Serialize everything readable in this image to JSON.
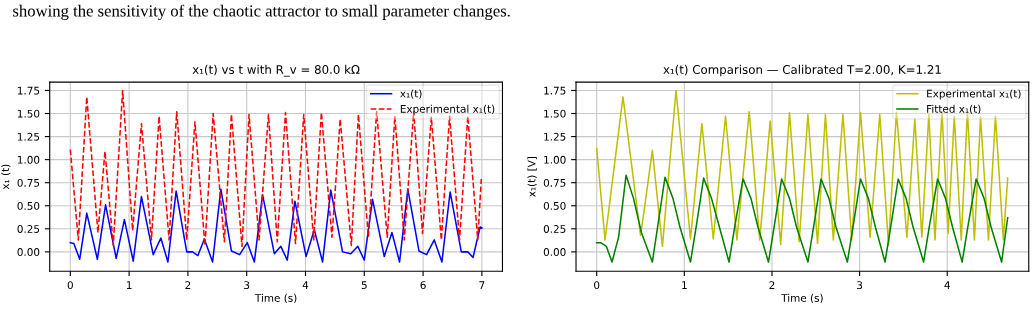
{
  "chart_data": [
    {
      "type": "line",
      "title": "x₁(t) vs t with R_v = 80.0 kΩ",
      "xlabel": "Time (s)",
      "ylabel": "x₁ (t)",
      "annotations": [
        "showing the sensitivity of the chaotic attractor to small parameter changes."
      ],
      "xlim": [
        -0.35,
        7.35
      ],
      "ylim": [
        -0.21,
        1.84
      ],
      "xticks": [
        0,
        1,
        2,
        3,
        4,
        5,
        6,
        7
      ],
      "yticks": [
        {
          "value": 0,
          "label": "0.00"
        },
        {
          "value": 0.25,
          "label": "0.25"
        },
        {
          "value": 0.5,
          "label": "0.50"
        },
        {
          "value": 0.75,
          "label": "0.75"
        },
        {
          "value": 1.0,
          "label": "1.00"
        },
        {
          "value": 1.25,
          "label": "1.25"
        },
        {
          "value": 1.5,
          "label": "1.50"
        },
        {
          "value": 1.75,
          "label": "1.75"
        }
      ],
      "grid": true,
      "legend": "top right",
      "series": [
        {
          "name": "x₁(t)",
          "color": "#0000ff",
          "line_style": "solid",
          "x": [
            0,
            0.06,
            0.16,
            0.28,
            0.46,
            0.6,
            0.78,
            0.92,
            1.07,
            1.21,
            1.41,
            1.54,
            1.66,
            1.8,
            1.98,
            2.08,
            2.17,
            2.28,
            2.42,
            2.56,
            2.74,
            2.88,
            3.01,
            3.13,
            3.27,
            3.47,
            3.58,
            3.69,
            3.82,
            4.01,
            4.15,
            4.29,
            4.43,
            4.63,
            4.77,
            4.89,
            5.0,
            5.14,
            5.34,
            5.47,
            5.6,
            5.74,
            5.93,
            6.06,
            6.19,
            6.32,
            6.46,
            6.65,
            6.76,
            6.85,
            6.97,
            7.0
          ],
          "values": [
            0.1,
            0.09,
            -0.08,
            0.42,
            -0.08,
            0.51,
            -0.07,
            0.35,
            -0.1,
            0.6,
            -0.03,
            0.15,
            -0.11,
            0.66,
            0.0,
            0.0,
            -0.04,
            0.14,
            -0.11,
            0.68,
            0.01,
            -0.03,
            0.1,
            -0.11,
            0.62,
            -0.02,
            0.06,
            -0.09,
            0.55,
            -0.05,
            0.24,
            -0.11,
            0.67,
            0.0,
            -0.02,
            0.06,
            -0.09,
            0.57,
            -0.05,
            0.21,
            -0.11,
            0.68,
            0.01,
            -0.03,
            0.13,
            -0.11,
            0.65,
            0.0,
            0.0,
            -0.06,
            0.27,
            0.26
          ]
        },
        {
          "name": "Experimental x₁(t)",
          "color": "#ff0000",
          "line_style": "dashed",
          "x": [
            0,
            0.136,
            0.28,
            0.47,
            0.59,
            0.73,
            0.89,
            1.06,
            1.21,
            1.38,
            1.51,
            1.68,
            1.81,
            1.98,
            2.12,
            2.29,
            2.43,
            2.62,
            2.74,
            2.92,
            3.04,
            3.21,
            3.37,
            3.52,
            3.66,
            3.83,
            3.97,
            4.14,
            4.27,
            4.45,
            4.59,
            4.78,
            4.9,
            5.07,
            5.21,
            5.39,
            5.52,
            5.68,
            5.84,
            5.99,
            6.14,
            6.31,
            6.45,
            6.62,
            6.76,
            6.93,
            6.99
          ],
          "values": [
            1.11,
            0.13,
            1.68,
            0.21,
            1.09,
            0.07,
            1.75,
            0.23,
            1.39,
            0.13,
            1.47,
            0.13,
            1.52,
            0.13,
            1.41,
            0.07,
            1.5,
            0.11,
            1.49,
            0.06,
            1.49,
            0.13,
            1.49,
            0.11,
            1.51,
            0.09,
            1.49,
            0.13,
            1.51,
            0.16,
            1.44,
            0.07,
            1.49,
            0.16,
            1.52,
            0.16,
            1.47,
            0.13,
            1.52,
            0.2,
            1.46,
            0.13,
            1.47,
            0.13,
            1.47,
            0.13,
            0.79
          ]
        }
      ]
    },
    {
      "type": "line",
      "title": "x₁(t) Comparison — Calibrated T=2.00, K=1.21",
      "xlabel": "Time (s)",
      "ylabel": "x₁(t) [V]",
      "xlim": [
        -0.236,
        4.93
      ],
      "ylim": [
        -0.21,
        1.84
      ],
      "xticks": [
        0,
        1,
        2,
        3,
        4
      ],
      "yticks": [
        {
          "value": 0,
          "label": "0.00"
        },
        {
          "value": 0.25,
          "label": "0.25"
        },
        {
          "value": 0.5,
          "label": "0.50"
        },
        {
          "value": 0.75,
          "label": "0.75"
        },
        {
          "value": 1.0,
          "label": "1.00"
        },
        {
          "value": 1.25,
          "label": "1.25"
        },
        {
          "value": 1.5,
          "label": "1.50"
        },
        {
          "value": 1.75,
          "label": "1.75"
        }
      ],
      "grid": true,
      "legend": "top right",
      "series": [
        {
          "name": "Experimental x₁(t)",
          "color": "#bfbf00",
          "line_style": "solid",
          "x": [
            0,
            0.095,
            0.3,
            0.5,
            0.54,
            0.635,
            0.75,
            0.905,
            1.07,
            1.2,
            1.33,
            1.47,
            1.6,
            1.74,
            1.86,
            1.98,
            2.1,
            2.2,
            2.31,
            2.41,
            2.52,
            2.61,
            2.7,
            2.81,
            2.91,
            3.01,
            3.12,
            3.23,
            3.33,
            3.42,
            3.54,
            3.63,
            3.71,
            3.79,
            3.86,
            3.94,
            4.01,
            4.08,
            4.16,
            4.23,
            4.31,
            4.38,
            4.47,
            4.55,
            4.64,
            4.69
          ],
          "values": [
            1.12,
            0.13,
            1.68,
            0.18,
            0.44,
            1.1,
            0.06,
            1.75,
            0.14,
            1.39,
            0.14,
            1.47,
            0.13,
            1.52,
            0.13,
            1.42,
            0.08,
            1.51,
            0.11,
            1.49,
            0.09,
            1.49,
            0.13,
            1.49,
            0.13,
            1.51,
            0.16,
            1.49,
            0.07,
            1.51,
            0.16,
            1.44,
            0.16,
            1.49,
            0.13,
            1.52,
            0.2,
            1.47,
            0.13,
            1.52,
            0.13,
            1.46,
            0.13,
            1.47,
            0.13,
            0.8
          ]
        },
        {
          "name": "Fitted x₁(t)",
          "color": "#008000",
          "line_style": "solid",
          "x": [
            0,
            0.046,
            0.11,
            0.175,
            0.25,
            0.335,
            0.42,
            0.51,
            0.635,
            0.7,
            0.78,
            0.87,
            0.95,
            1.07,
            1.14,
            1.22,
            1.31,
            1.4,
            1.51,
            1.58,
            1.67,
            1.76,
            1.84,
            1.96,
            2.03,
            2.11,
            2.2,
            2.28,
            2.41,
            2.48,
            2.56,
            2.65,
            2.73,
            2.86,
            2.93,
            3.01,
            3.1,
            3.18,
            3.29,
            3.36,
            3.44,
            3.53,
            3.61,
            3.73,
            3.8,
            3.89,
            3.98,
            4.06,
            4.17,
            4.24,
            4.33,
            4.42,
            4.5,
            4.62,
            4.69
          ],
          "values": [
            0.1,
            0.1,
            0.06,
            -0.11,
            0.16,
            0.83,
            0.58,
            0.21,
            -0.11,
            0.3,
            0.81,
            0.58,
            0.27,
            -0.11,
            0.3,
            0.8,
            0.58,
            0.27,
            -0.11,
            0.3,
            0.79,
            0.58,
            0.27,
            -0.11,
            0.3,
            0.79,
            0.58,
            0.27,
            -0.11,
            0.3,
            0.79,
            0.58,
            0.27,
            -0.11,
            0.3,
            0.79,
            0.58,
            0.27,
            -0.11,
            0.3,
            0.79,
            0.58,
            0.27,
            -0.11,
            0.3,
            0.79,
            0.58,
            0.27,
            -0.11,
            0.3,
            0.79,
            0.58,
            0.27,
            -0.11,
            0.37
          ]
        }
      ]
    }
  ]
}
